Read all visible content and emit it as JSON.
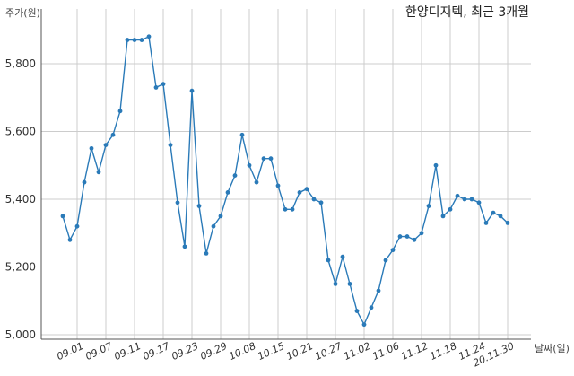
{
  "chart_data": {
    "type": "line",
    "title": "한양디지텍, 최근 3개월",
    "ylabel": "주가(원)",
    "xlabel": "날짜(일)",
    "ylim": [
      5000,
      5950
    ],
    "yticks": [
      5000,
      5200,
      5400,
      5600,
      5800
    ],
    "ytick_labels": [
      "5,000",
      "5,200",
      "5,400",
      "5,600",
      "5,800"
    ],
    "xtick_labels": [
      "09.01",
      "09.07",
      "09.11",
      "09.17",
      "09.23",
      "09.29",
      "10.08",
      "10.15",
      "10.21",
      "10.27",
      "11.02",
      "11.06",
      "11.12",
      "11.18",
      "11.24",
      "20.11.30"
    ],
    "xtick_index": [
      2,
      6,
      10,
      14,
      18,
      22,
      26,
      30,
      34,
      38,
      42,
      46,
      50,
      54,
      58,
      62
    ],
    "grid": true,
    "color": "#2a7ab8",
    "series": [
      {
        "values": [
          5350,
          5280,
          5320,
          5450,
          5550,
          5480,
          5560,
          5590,
          5660,
          5870,
          5870,
          5870,
          5880,
          5730,
          5740,
          5560,
          5390,
          5260,
          5720,
          5380,
          5240,
          5320,
          5350,
          5420,
          5470,
          5590,
          5500,
          5450,
          5520,
          5520,
          5440,
          5370,
          5370,
          5420,
          5430,
          5400,
          5390,
          5220,
          5150,
          5230,
          5150,
          5070,
          5030,
          5080,
          5130,
          5220,
          5250,
          5290,
          5290,
          5280,
          5300,
          5380,
          5500,
          5350,
          5370,
          5410,
          5400,
          5400,
          5390,
          5330,
          5360,
          5350,
          5330
        ]
      }
    ]
  }
}
